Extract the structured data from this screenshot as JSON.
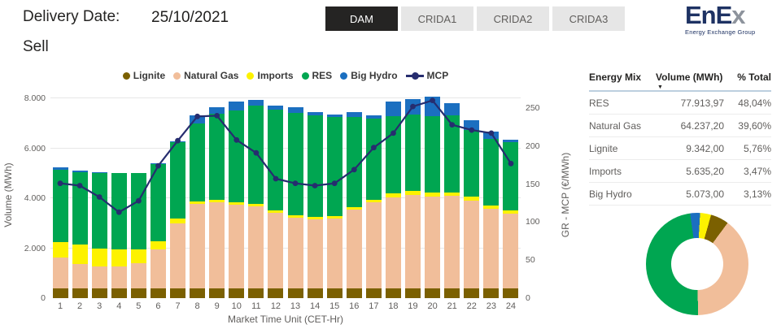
{
  "header": {
    "delivery_date_label": "Delivery Date:",
    "delivery_date_value": "25/10/2021",
    "sell_label": "Sell",
    "tabs": [
      {
        "label": "DAM",
        "active": true
      },
      {
        "label": "CRIDA1",
        "active": false
      },
      {
        "label": "CRIDA2",
        "active": false
      },
      {
        "label": "CRIDA3",
        "active": false
      }
    ],
    "logo": {
      "text": "EnEx",
      "subtitle": "Energy Exchange Group"
    }
  },
  "colors": {
    "lignite": "#7b6000",
    "natural_gas": "#f1be9a",
    "imports": "#fdf200",
    "res": "#00a651",
    "big_hydro": "#1b6fc0",
    "mcp_line": "#262d6f",
    "tab_active_bg": "#252423",
    "tab_inactive_bg": "#e6e6e6",
    "logo_navy": "#1e3263"
  },
  "chart_data": {
    "type": "bar",
    "subtype": "stacked-bar-with-line",
    "x": [
      1,
      2,
      3,
      4,
      5,
      6,
      7,
      8,
      9,
      10,
      11,
      12,
      13,
      14,
      15,
      16,
      17,
      18,
      19,
      20,
      21,
      22,
      23,
      24
    ],
    "series": [
      {
        "name": "Lignite",
        "color": "#7b6000",
        "values": [
          390,
          390,
          390,
          390,
          390,
          390,
          390,
          390,
          390,
          390,
          390,
          390,
          390,
          390,
          390,
          390,
          390,
          390,
          390,
          390,
          390,
          390,
          390,
          390
        ]
      },
      {
        "name": "Natural Gas",
        "color": "#f1be9a",
        "values": [
          1250,
          970,
          890,
          880,
          1010,
          1550,
          2600,
          3380,
          3450,
          3360,
          3290,
          3030,
          2830,
          2750,
          2800,
          3140,
          3440,
          3650,
          3740,
          3690,
          3720,
          3520,
          3200,
          2980
        ]
      },
      {
        "name": "Imports",
        "color": "#fdf200",
        "values": [
          610,
          780,
          720,
          670,
          550,
          350,
          190,
          90,
          90,
          90,
          90,
          100,
          100,
          100,
          100,
          110,
          110,
          140,
          160,
          140,
          130,
          140,
          130,
          130
        ]
      },
      {
        "name": "RES",
        "color": "#00a651",
        "values": [
          2900,
          2900,
          3000,
          3060,
          3050,
          3090,
          3080,
          3140,
          3460,
          3680,
          3950,
          4020,
          4110,
          4070,
          3970,
          3600,
          3260,
          3090,
          3070,
          3050,
          3080,
          2690,
          2660,
          2740
        ]
      },
      {
        "name": "Big Hydro",
        "color": "#1b6fc0",
        "values": [
          90,
          60,
          30,
          0,
          0,
          30,
          30,
          320,
          240,
          350,
          200,
          170,
          220,
          130,
          100,
          220,
          130,
          600,
          620,
          800,
          480,
          380,
          300,
          100
        ]
      }
    ],
    "line_series": {
      "name": "MCP",
      "color": "#262d6f",
      "values": [
        151,
        148,
        133,
        113,
        128,
        174,
        207,
        239,
        240,
        208,
        191,
        157,
        151,
        148,
        151,
        169,
        198,
        217,
        252,
        260,
        228,
        221,
        217,
        177
      ]
    },
    "xlabel": "Market Time Unit (CET-Hr)",
    "ylabel_left": "Volume (MWh)",
    "ylabel_right": "GR - MCP (€/MWh)",
    "y_left_axis": {
      "min": 0,
      "max": 8000,
      "tick_values": [
        0,
        2000,
        4000,
        6000,
        8000
      ],
      "tick_labels": [
        "0",
        "2.000",
        "4.000",
        "6.000",
        "8.000"
      ]
    },
    "y_right_axis": {
      "min": 0,
      "max": 250,
      "tick_values": [
        0,
        50,
        100,
        150,
        200,
        250
      ],
      "tick_labels": [
        "0",
        "50",
        "100",
        "150",
        "200",
        "250"
      ]
    },
    "grid": true,
    "legend_position": "top"
  },
  "table": {
    "columns": [
      "Energy Mix",
      "Volume (MWh)",
      "% Total"
    ],
    "sorted_by": "Volume (MWh)",
    "sort_direction": "desc",
    "rows": [
      {
        "name": "RES",
        "volume": "77.913,97",
        "pct": "48,04%"
      },
      {
        "name": "Natural Gas",
        "volume": "64.237,20",
        "pct": "39,60%"
      },
      {
        "name": "Lignite",
        "volume": "9.342,00",
        "pct": "5,76%"
      },
      {
        "name": "Imports",
        "volume": "5.635,20",
        "pct": "3,47%"
      },
      {
        "name": "Big Hydro",
        "volume": "5.073,00",
        "pct": "3,13%"
      }
    ]
  },
  "donut_chart": {
    "type": "pie",
    "start_angle_deg": -8,
    "slices": [
      {
        "name": "Big Hydro",
        "pct": 3.13,
        "color": "#1b6fc0"
      },
      {
        "name": "Imports",
        "pct": 3.47,
        "color": "#fdf200"
      },
      {
        "name": "Lignite",
        "pct": 5.76,
        "color": "#7b6000"
      },
      {
        "name": "Natural Gas",
        "pct": 39.6,
        "color": "#f1be9a"
      },
      {
        "name": "RES",
        "pct": 48.04,
        "color": "#00a651"
      }
    ]
  }
}
